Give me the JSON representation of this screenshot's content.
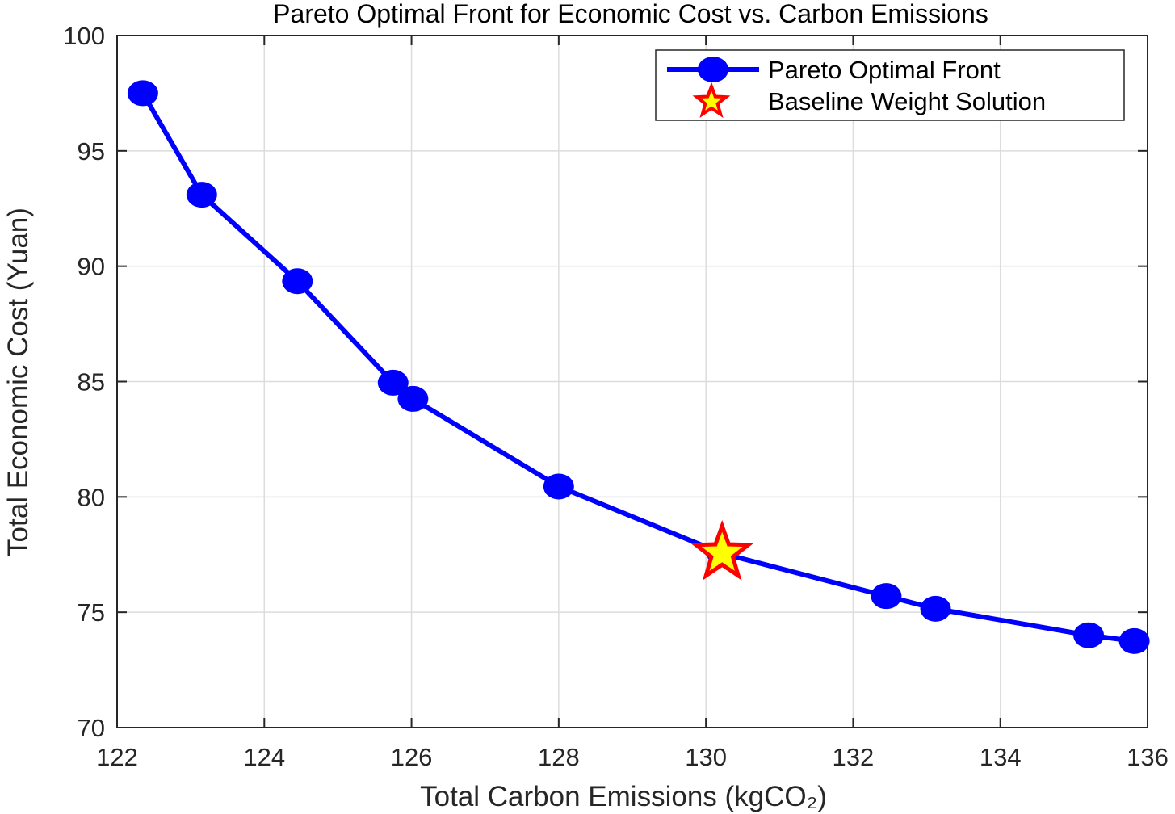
{
  "chart_data": {
    "type": "line",
    "title": "Pareto Optimal Front for Economic Cost vs. Carbon Emissions",
    "xlabel": "Total Carbon Emissions (kgCO₂)",
    "ylabel": "Total Economic Cost (Yuan)",
    "xlim": [
      122,
      136
    ],
    "ylim": [
      70,
      100
    ],
    "xticks": [
      122,
      124,
      126,
      128,
      130,
      132,
      134,
      136
    ],
    "yticks": [
      70,
      75,
      80,
      85,
      90,
      95,
      100
    ],
    "grid": true,
    "legend_position": "top-right",
    "series": [
      {
        "name": "Pareto Optimal Front",
        "color": "#0000ff",
        "marker": "circle",
        "x": [
          122.35,
          123.15,
          124.45,
          125.75,
          126.02,
          128.0,
          130.22,
          132.45,
          133.12,
          135.2,
          135.82
        ],
        "y": [
          97.5,
          93.1,
          89.35,
          84.95,
          84.25,
          80.45,
          77.55,
          75.7,
          75.15,
          74.0,
          73.75
        ]
      }
    ],
    "highlight": {
      "name": "Baseline Weight Solution",
      "x": 130.22,
      "y": 77.55,
      "marker": "star",
      "fill": "#ffff00",
      "stroke": "#ff0000"
    }
  }
}
